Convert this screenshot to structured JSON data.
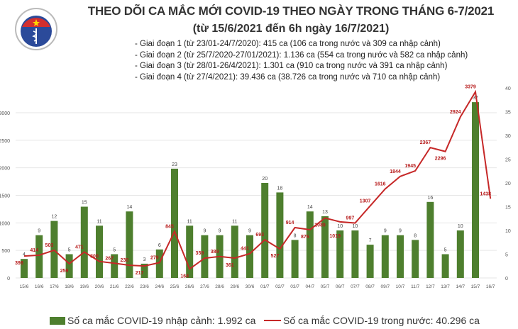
{
  "header": {
    "title": "THEO DÕI CA MẮC MỚI COVID-19 THEO NGÀY TRONG THÁNG 6-7/2021",
    "subtitle": "(từ 15/6/2021 đến 6h ngày 16/7/2021)",
    "logo_text": "BỘ Y TẾ",
    "phases": [
      "- Giai đoạn 1 (từ 23/01-24/7/2020): 415 ca (106 ca trong nước và 309 ca nhập cảnh)",
      "- Giai đoạn 2 (từ 25/7/2020-27/01/2021): 1.136 ca (554 ca trong nước và 582 ca nhập cảnh)",
      "- Giai đoạn 3 (từ 28/01-26/4/2021): 1.301 ca (910 ca trong nước và 391 ca nhập cảnh)",
      "- Giai đoạn 4 (từ 27/4/2021): 39.436 ca (38.726 ca trong nước và 710 ca nhập cảnh)"
    ]
  },
  "colors": {
    "bar": "#4e7f2e",
    "line": "#c62828",
    "grid": "#e6e6e6"
  },
  "chart_data": {
    "type": "bar+line",
    "categories": [
      "15/6",
      "16/6",
      "17/6",
      "18/6",
      "19/6",
      "20/6",
      "21/6",
      "22/6",
      "23/6",
      "24/6",
      "25/6",
      "26/6",
      "27/6",
      "28/6",
      "29/6",
      "30/6",
      "01/7",
      "02/7",
      "03/7",
      "04/7",
      "05/7",
      "06/7",
      "07/7",
      "08/7",
      "09/7",
      "10/7",
      "11/7",
      "12/7",
      "13/7",
      "14/7",
      "15/7",
      "16/7"
    ],
    "series": [
      {
        "name": "Số ca mắc COVID-19 nhập cảnh: 1.992 ca",
        "type": "bar",
        "axis": "right",
        "values": [
          4,
          9,
          12,
          5,
          15,
          11,
          5,
          14,
          3,
          6,
          23,
          11,
          9,
          9,
          11,
          9,
          20,
          18,
          8,
          14,
          13,
          10,
          10,
          7,
          9,
          9,
          8,
          16,
          5,
          10,
          37,
          null
        ]
      },
      {
        "name": "Số ca mắc COVID-19 trong nước: 40.296 ca",
        "type": "line",
        "axis": "left",
        "values": [
          398,
          414,
          503,
          259,
          471,
          300,
          267,
          230,
          217,
          279,
          845,
          164,
          359,
          389,
          361,
          441,
          693,
          527,
          914,
          876,
          1089,
          1019,
          997,
          1307,
          1616,
          1844,
          1945,
          2367,
          2296,
          2924,
          3379,
          1438
        ]
      }
    ],
    "left_axis": {
      "ylim": [
        0,
        3450
      ],
      "ticks": [
        0,
        500,
        1000,
        1500,
        2000,
        2500,
        3000
      ]
    },
    "right_axis": {
      "ylim": [
        0,
        40
      ],
      "ticks": [
        0,
        5,
        10,
        15,
        20,
        25,
        30,
        35,
        40
      ]
    },
    "grid": true,
    "legend_placement": "bottom"
  }
}
